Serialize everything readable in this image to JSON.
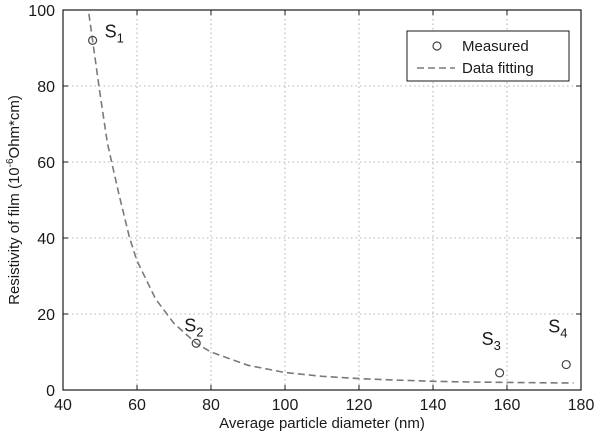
{
  "chart_data": {
    "type": "scatter",
    "xlabel": "Average particle diameter (nm)",
    "ylabel": {
      "prefix": "Resistivity of film (10",
      "exponent": "-6",
      "suffix": "Ohm*cm)"
    },
    "xlim": [
      40,
      180
    ],
    "ylim": [
      0,
      100
    ],
    "xticks": [
      40,
      60,
      80,
      100,
      120,
      140,
      160,
      180
    ],
    "yticks": [
      0,
      20,
      40,
      60,
      80,
      100
    ],
    "grid": true,
    "legend_position": "top-right",
    "series": [
      {
        "name": "Measured",
        "kind": "markers",
        "marker": "open-circle",
        "points": [
          {
            "x": 48,
            "y": 92,
            "label": "S",
            "sub": "1"
          },
          {
            "x": 76,
            "y": 12.3,
            "label": "S",
            "sub": "2"
          },
          {
            "x": 158,
            "y": 4.5,
            "label": "S",
            "sub": "3"
          },
          {
            "x": 176,
            "y": 6.7,
            "label": "S",
            "sub": "4"
          }
        ]
      },
      {
        "name": "Data fitting",
        "kind": "dashed-line",
        "points": [
          {
            "x": 47,
            "y": 99
          },
          {
            "x": 48,
            "y": 92
          },
          {
            "x": 50,
            "y": 78
          },
          {
            "x": 52,
            "y": 65
          },
          {
            "x": 55,
            "y": 52
          },
          {
            "x": 58,
            "y": 40
          },
          {
            "x": 60,
            "y": 34
          },
          {
            "x": 65,
            "y": 24
          },
          {
            "x": 70,
            "y": 17.5
          },
          {
            "x": 76,
            "y": 12.3
          },
          {
            "x": 80,
            "y": 10
          },
          {
            "x": 90,
            "y": 6.5
          },
          {
            "x": 100,
            "y": 4.6
          },
          {
            "x": 110,
            "y": 3.6
          },
          {
            "x": 120,
            "y": 3.0
          },
          {
            "x": 130,
            "y": 2.6
          },
          {
            "x": 140,
            "y": 2.3
          },
          {
            "x": 150,
            "y": 2.1
          },
          {
            "x": 160,
            "y": 2.0
          },
          {
            "x": 170,
            "y": 1.9
          },
          {
            "x": 178,
            "y": 1.85
          }
        ]
      }
    ]
  },
  "colors": {
    "axis": "#1a1a1a",
    "grid": "#9a9a9a",
    "marker": "#444444",
    "fit_line": "#7a7a7a"
  }
}
